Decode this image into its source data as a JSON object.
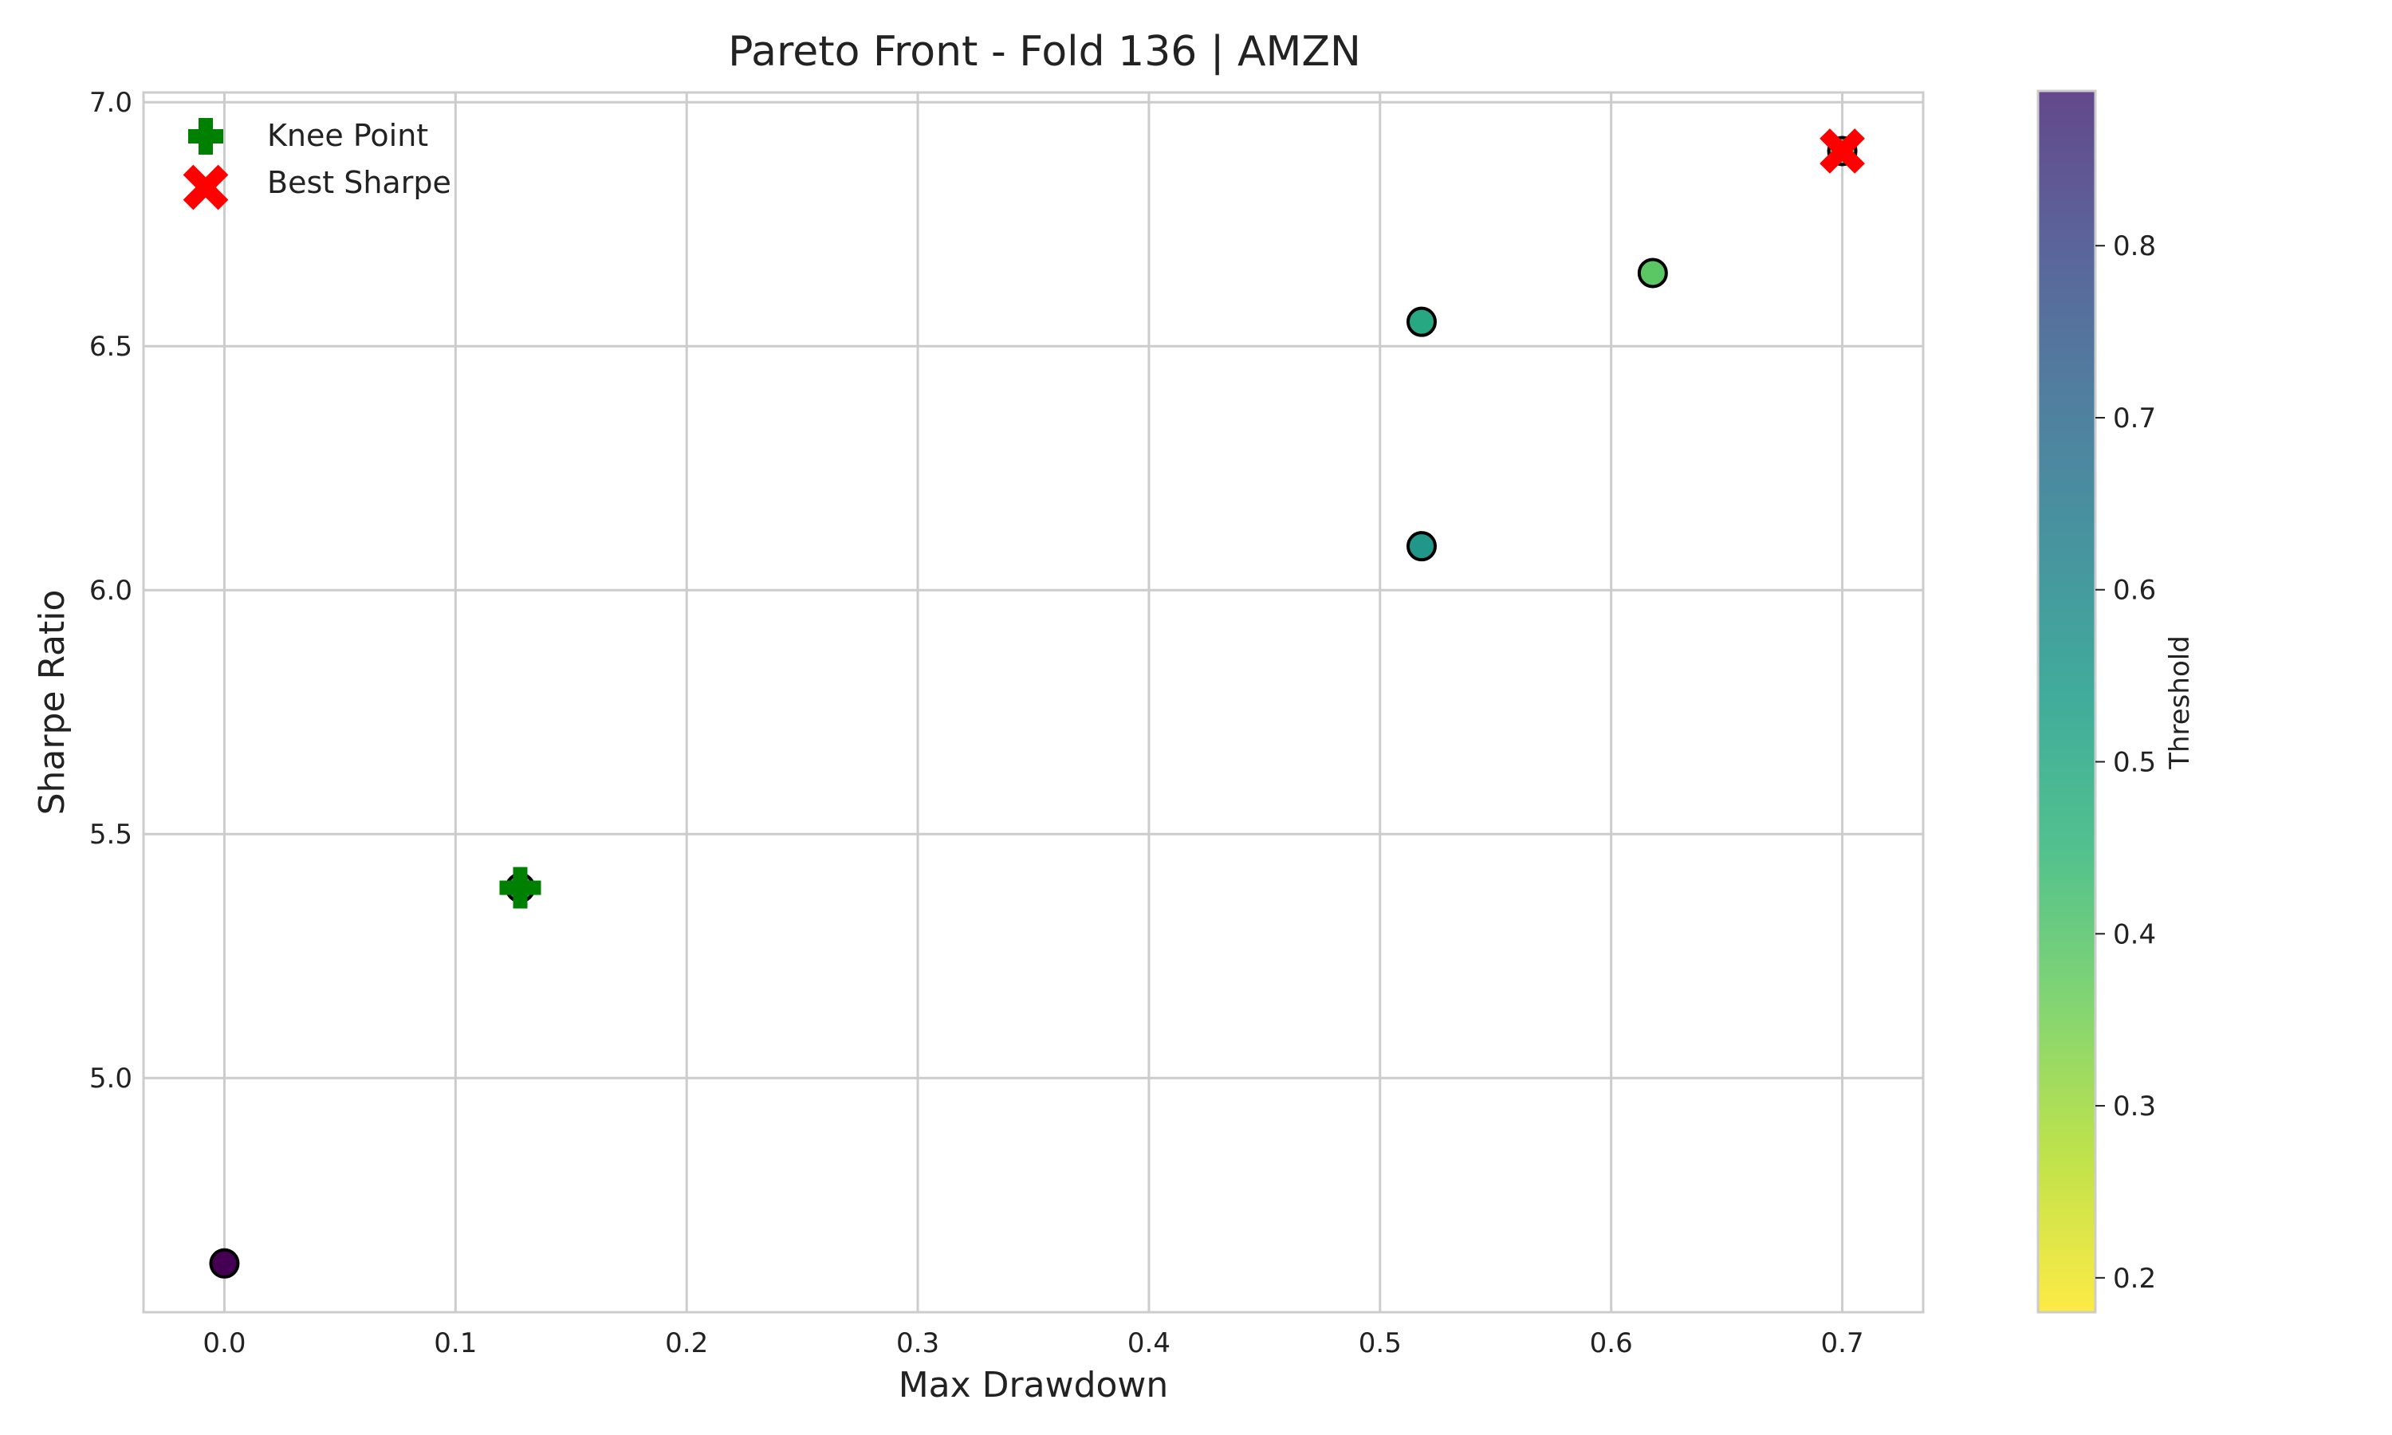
{
  "chart_data": {
    "type": "scatter",
    "title": "Pareto Front - Fold 136 | AMZN",
    "xlabel": "Max Drawdown",
    "ylabel": "Sharpe Ratio",
    "xlim": [
      -0.035,
      0.735
    ],
    "ylim": [
      4.52,
      7.02
    ],
    "x_ticks": [
      0.0,
      0.1,
      0.2,
      0.3,
      0.4,
      0.5,
      0.6,
      0.7
    ],
    "x_tick_labels": [
      "0.0",
      "0.1",
      "0.2",
      "0.3",
      "0.4",
      "0.5",
      "0.6",
      "0.7"
    ],
    "y_ticks": [
      5.0,
      5.5,
      6.0,
      6.5,
      7.0
    ],
    "y_tick_labels": [
      "5.0",
      "5.5",
      "6.0",
      "6.5",
      "7.0"
    ],
    "grid": true,
    "colormap": "viridis_r",
    "colorbar": {
      "label": "Threshold",
      "range": [
        0.18,
        0.89
      ],
      "ticks": [
        0.2,
        0.3,
        0.4,
        0.5,
        0.6,
        0.7,
        0.8
      ],
      "tick_labels": [
        "0.2",
        "0.3",
        "0.4",
        "0.5",
        "0.6",
        "0.7",
        "0.8"
      ]
    },
    "points": [
      {
        "x": 0.0,
        "y": 4.62,
        "threshold": 0.89
      },
      {
        "x": 0.128,
        "y": 5.39,
        "threshold": 0.5
      },
      {
        "x": 0.518,
        "y": 6.09,
        "threshold": 0.47
      },
      {
        "x": 0.518,
        "y": 6.55,
        "threshold": 0.41
      },
      {
        "x": 0.618,
        "y": 6.65,
        "threshold": 0.3
      },
      {
        "x": 0.7,
        "y": 6.9,
        "threshold": 0.3
      }
    ],
    "knee_point": {
      "x": 0.128,
      "y": 5.39,
      "color": "#008000"
    },
    "best_sharpe": {
      "x": 0.7,
      "y": 6.9,
      "color": "#ff0000"
    },
    "legend": {
      "placement": "top-left",
      "entries": [
        {
          "label": "Knee Point",
          "marker": "plus",
          "color": "#008000"
        },
        {
          "label": "Best Sharpe",
          "marker": "x",
          "color": "#ff0000"
        }
      ]
    }
  }
}
